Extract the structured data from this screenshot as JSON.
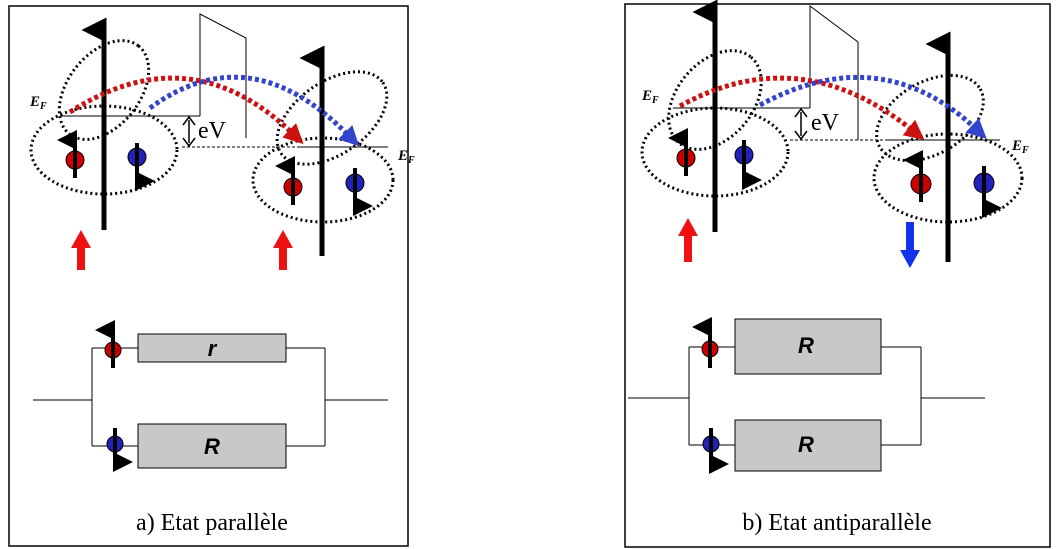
{
  "panel_a": {
    "ef_left": "E",
    "ef_right": "E",
    "ef_sub": "F",
    "ev_label": "eV",
    "resistor_top": "r",
    "resistor_bottom": "R",
    "caption": "a) Etat parallèle",
    "magnetization_left": "up",
    "magnetization_right": "up"
  },
  "panel_b": {
    "ef_left": "E",
    "ef_right": "E",
    "ef_sub": "F",
    "ev_label": "eV",
    "resistor_top": "R",
    "resistor_bottom": "R",
    "caption": "b) Etat antiparallèle",
    "magnetization_left": "up",
    "magnetization_right": "down"
  },
  "colors": {
    "spin_up": "#cc0000",
    "spin_down": "#2222bb",
    "tunnel_up": "#cc1111",
    "tunnel_down": "#3344cc",
    "magnet_up": "#ee1111",
    "magnet_down": "#1133ee",
    "resistor_fill": "#c8c8c8"
  }
}
